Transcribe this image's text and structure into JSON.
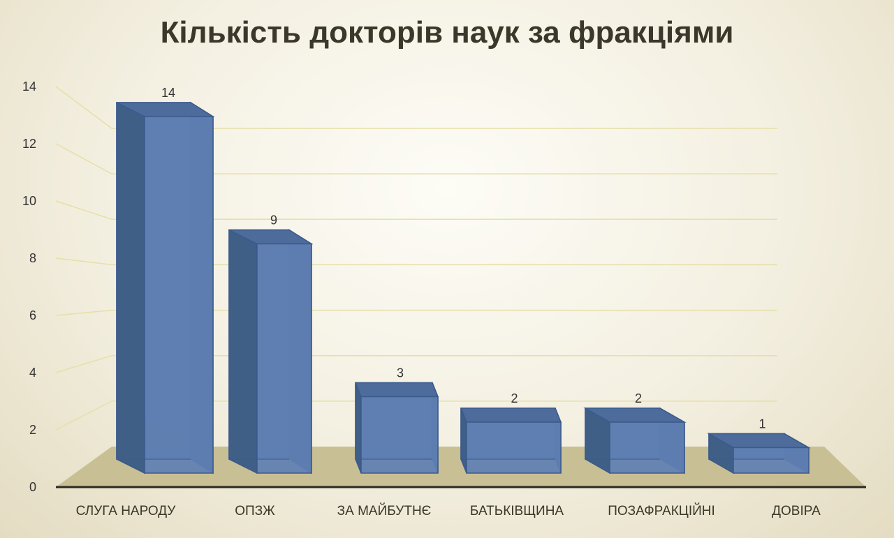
{
  "chart_data": {
    "type": "bar",
    "title": "Кількість докторів наук за фракціями",
    "categories": [
      "СЛУГА НАРОДУ",
      "ОПЗЖ",
      "ЗА МАЙБУТНЄ",
      "БАТЬКІВЩИНА",
      "ПОЗАФРАКЦІЙНІ",
      "ДОВІРА"
    ],
    "values": [
      14,
      9,
      3,
      2,
      2,
      1
    ],
    "data_labels": [
      "14",
      "9",
      "3",
      "2",
      "2",
      "1"
    ],
    "xlabel": "",
    "ylabel": "",
    "ylim": [
      0,
      14
    ],
    "yticks": [
      "0",
      "2",
      "4",
      "6",
      "8",
      "10",
      "12",
      "14"
    ],
    "grid": true,
    "style": "3d-column",
    "colors": {
      "bar": "#5f80b4",
      "bar_side": "#3f5f86",
      "floor": "#c9bf95",
      "grid": "#e6dfa8",
      "text": "#333333"
    }
  }
}
